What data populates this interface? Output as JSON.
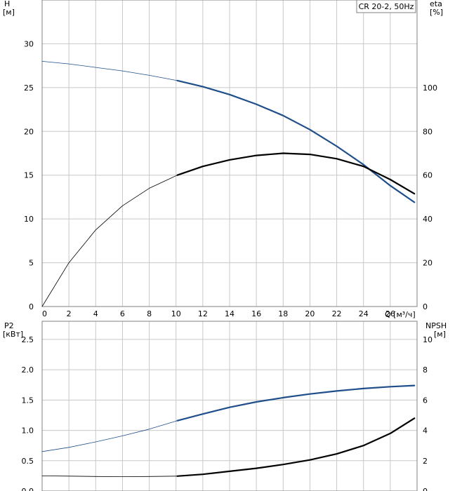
{
  "legend_label": "CR 20-2, 50Hz",
  "colors": {
    "h_curve": "#1f4e8a",
    "eta_curve": "#000000",
    "p2_curve": "#1f4e8a",
    "npsh_curve": "#000000",
    "grid": "#c8c8c8",
    "frame": "#808080"
  },
  "chart_data": [
    {
      "type": "line",
      "title": "",
      "xlabel": "Q [м³/ч]",
      "ylabel": "H\n[м]",
      "y2label": "eta\n[%]",
      "xlim": [
        0,
        28
      ],
      "ylim": [
        0,
        35
      ],
      "y2lim": [
        0,
        140
      ],
      "xticks": [
        "0",
        "2",
        "4",
        "6",
        "8",
        "10",
        "12",
        "14",
        "16",
        "18",
        "20",
        "22",
        "24",
        "26"
      ],
      "yticks": [
        "0",
        "5",
        "10",
        "15",
        "20",
        "25",
        "30"
      ],
      "y2ticks": [
        "0",
        "20",
        "40",
        "60",
        "80",
        "100"
      ],
      "grid": true,
      "series": [
        {
          "axis": "left",
          "color_key": "h_curve",
          "duty_from_x": 10.1,
          "x": [
            0,
            2,
            4,
            6,
            8,
            10.1,
            12,
            14,
            16,
            18,
            20,
            22,
            24,
            26,
            27.8
          ],
          "y": [
            28,
            27.7,
            27.3,
            26.9,
            26.4,
            25.8,
            25.1,
            24.2,
            23.1,
            21.8,
            20.2,
            18.3,
            16.2,
            13.8,
            11.9
          ]
        },
        {
          "axis": "right",
          "color_key": "eta_curve",
          "duty_from_x": 10.1,
          "x": [
            0,
            2,
            4,
            6,
            8,
            10.1,
            12,
            14,
            16,
            18,
            20,
            22,
            24,
            26,
            27.8
          ],
          "y": [
            0,
            20,
            35,
            46,
            54,
            60,
            64,
            67,
            69,
            70,
            69.5,
            67.5,
            64,
            58,
            51.5
          ]
        }
      ]
    },
    {
      "type": "line",
      "title": "",
      "xlabel": "",
      "ylabel": "P2\n[кВт]",
      "y2label": "NPSH\n[м]",
      "xlim": [
        0,
        28
      ],
      "ylim": [
        0,
        2.8
      ],
      "y2lim": [
        0,
        11.2
      ],
      "yticks": [
        "0.0",
        "0.5",
        "1.0",
        "1.5",
        "2.0",
        "2.5"
      ],
      "y2ticks": [
        "0",
        "2",
        "4",
        "6",
        "8",
        "10"
      ],
      "grid": true,
      "series": [
        {
          "axis": "left",
          "color_key": "p2_curve",
          "duty_from_x": 10.1,
          "x": [
            0,
            2,
            4,
            6,
            8,
            10.1,
            12,
            14,
            16,
            18,
            20,
            22,
            24,
            26,
            27.8
          ],
          "y": [
            0.65,
            0.72,
            0.81,
            0.91,
            1.02,
            1.16,
            1.27,
            1.38,
            1.47,
            1.54,
            1.6,
            1.65,
            1.69,
            1.72,
            1.74
          ]
        },
        {
          "axis": "right",
          "color_key": "npsh_curve",
          "duty_from_x": 10.1,
          "x": [
            0,
            2,
            4,
            6,
            8,
            10.1,
            12,
            14,
            16,
            18,
            20,
            22,
            24,
            26,
            27.8
          ],
          "y": [
            1.0,
            0.98,
            0.96,
            0.95,
            0.96,
            0.98,
            1.1,
            1.3,
            1.5,
            1.75,
            2.05,
            2.45,
            3.0,
            3.8,
            4.8
          ]
        }
      ]
    }
  ]
}
